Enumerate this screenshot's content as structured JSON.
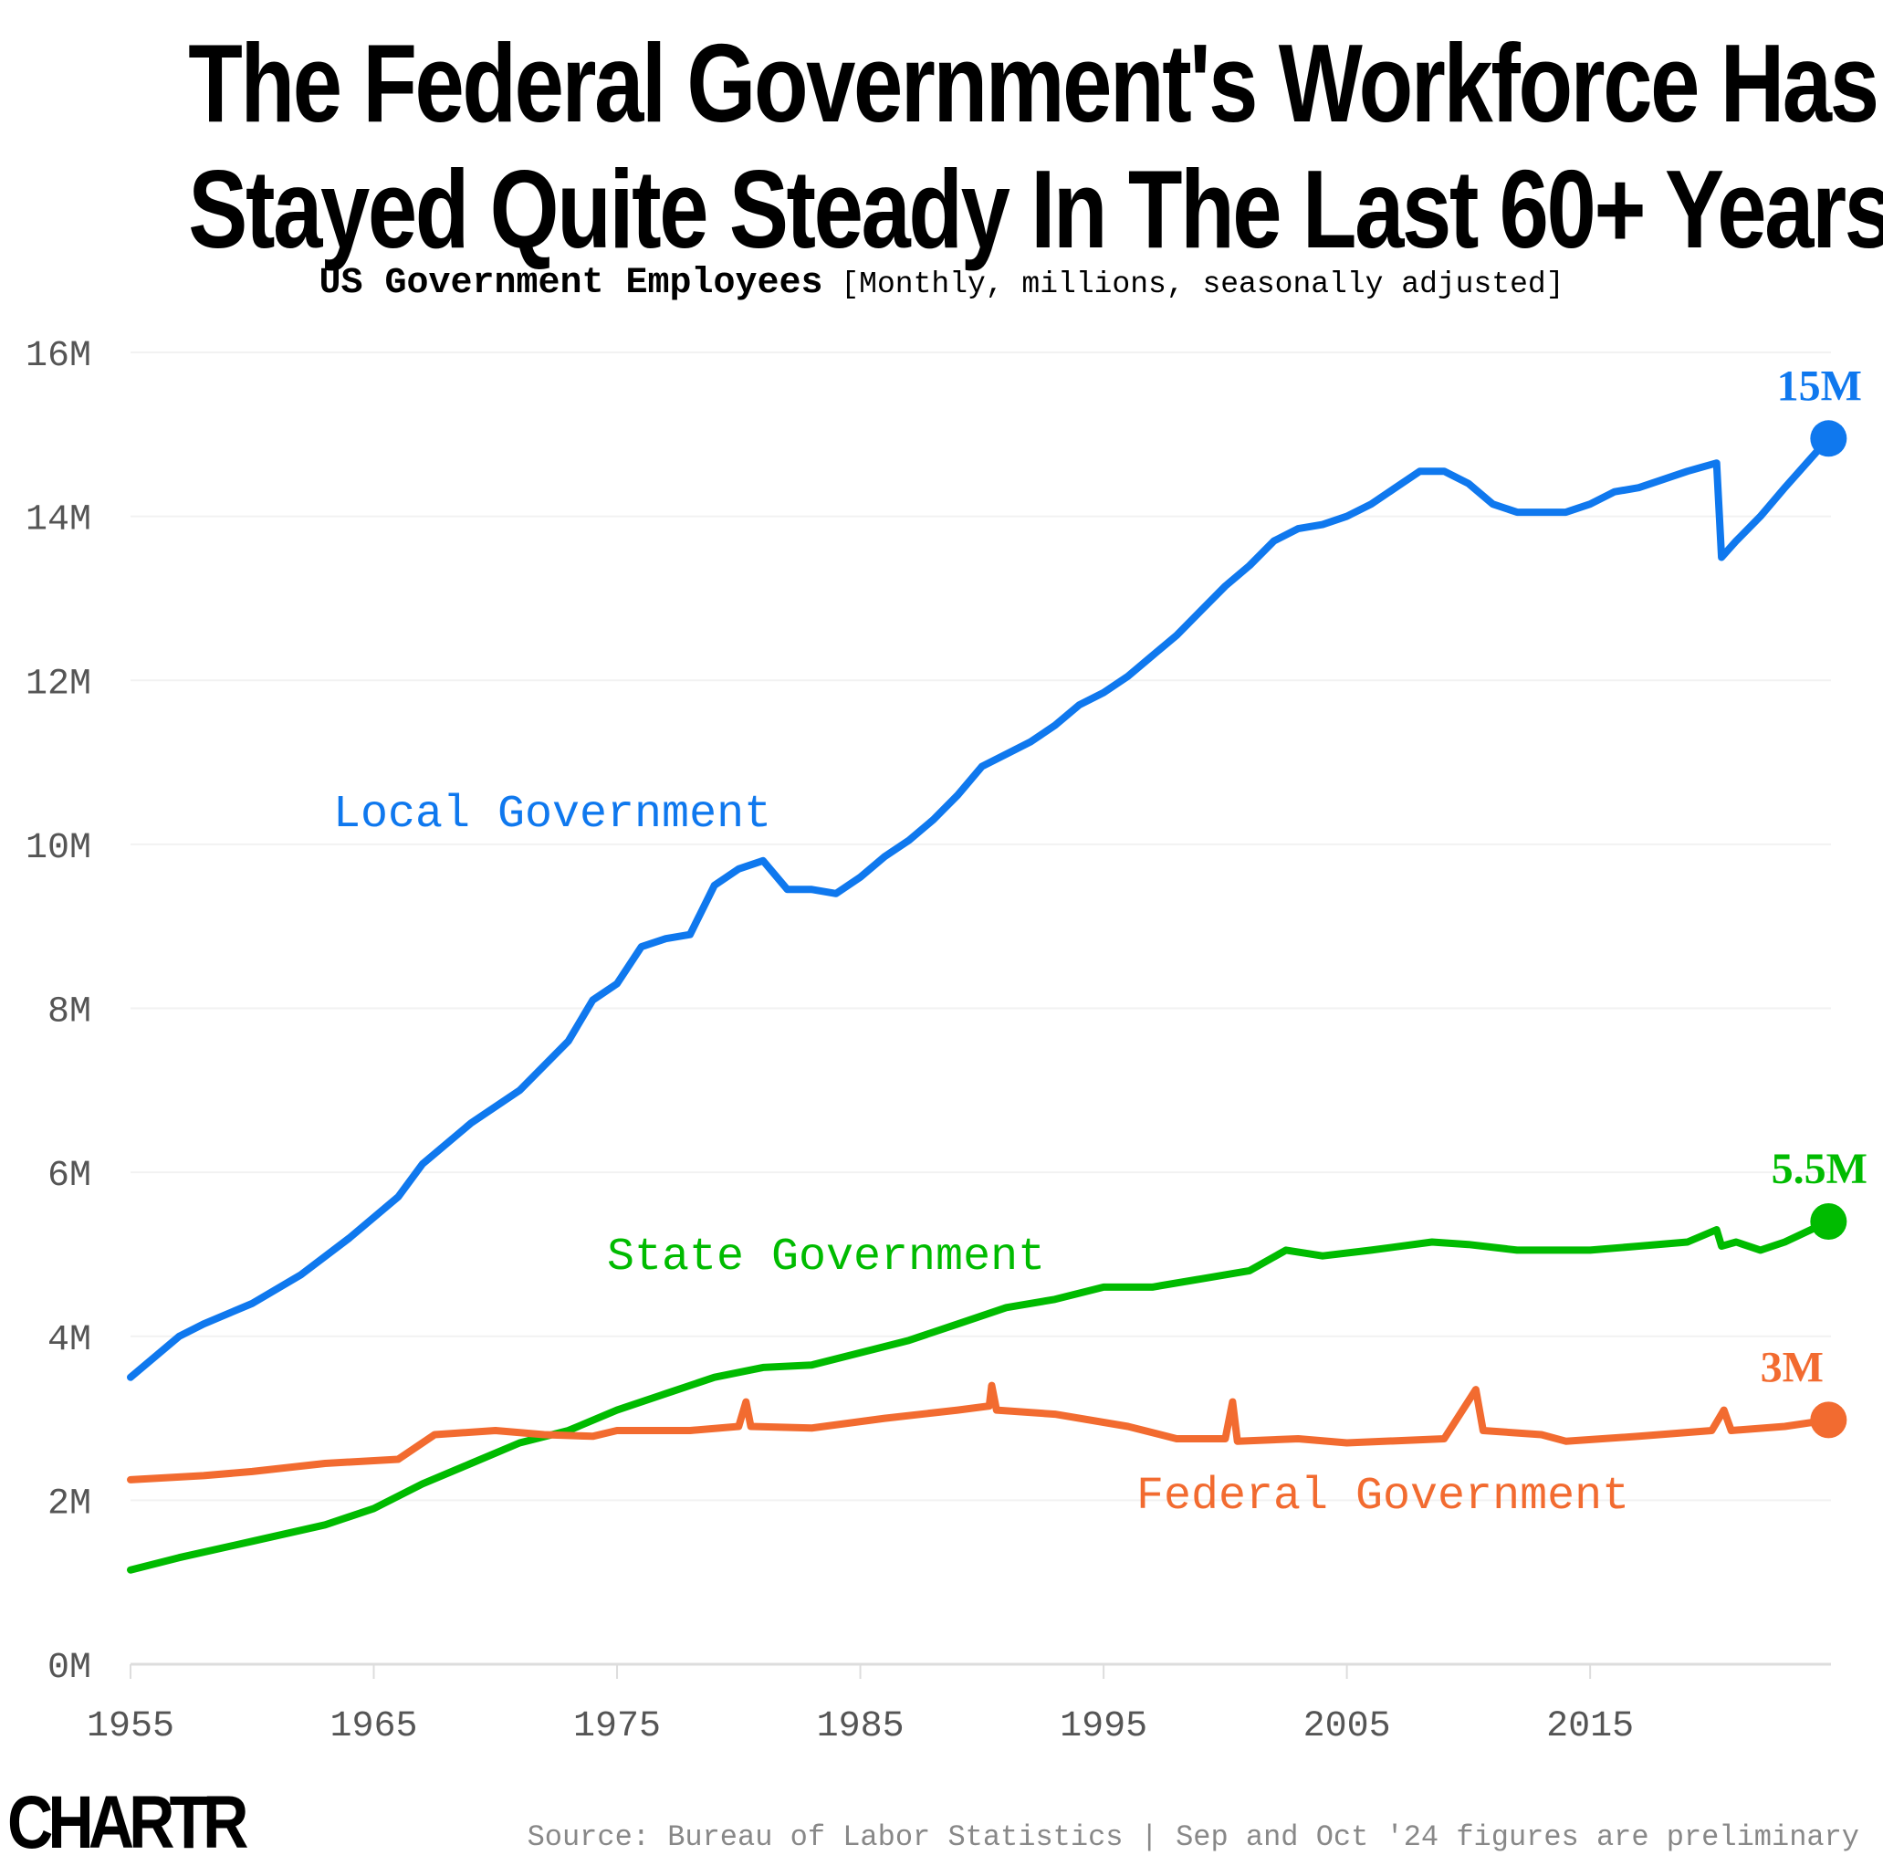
{
  "chart_data": {
    "type": "line",
    "title": "The Federal Government's Workforce Has Stayed Quite Steady In The Last 60+ Years",
    "title_lines": [
      "The Federal Government's Workforce Has",
      "Stayed Quite Steady In The Last 60+ Years"
    ],
    "subtitle_bold": "US Government Employees",
    "subtitle_rest": "[Monthly, millions, seasonally adjusted]",
    "xlabel": "",
    "ylabel": "",
    "xlim": [
      1955,
      2024.9
    ],
    "ylim": [
      0,
      16
    ],
    "x_ticks": [
      1955,
      1965,
      1975,
      1985,
      1995,
      2005,
      2015
    ],
    "x_tick_labels": [
      "1955",
      "1965",
      "1975",
      "1985",
      "1995",
      "2005",
      "2015"
    ],
    "y_ticks": [
      0,
      2,
      4,
      6,
      8,
      10,
      12,
      14,
      16
    ],
    "y_tick_labels": [
      "0M",
      "2M",
      "4M",
      "6M",
      "8M",
      "10M",
      "12M",
      "14M",
      "16M"
    ],
    "grid": "horizontal",
    "series": [
      {
        "name": "Local Government",
        "color": "#0f78ee",
        "end_label": "15M",
        "x": [
          1955,
          1957,
          1958,
          1960,
          1962,
          1964,
          1966,
          1967,
          1969,
          1971,
          1973,
          1974,
          1975,
          1976,
          1977,
          1978,
          1979,
          1980,
          1981,
          1982,
          1983,
          1984,
          1985,
          1986,
          1987,
          1988,
          1989,
          1990,
          1991,
          1992,
          1993,
          1994,
          1995,
          1996,
          1997,
          1998,
          1999,
          2000,
          2001,
          2002,
          2003,
          2004,
          2005,
          2006,
          2007,
          2008,
          2009,
          2010,
          2011,
          2012,
          2013,
          2014,
          2015,
          2016,
          2017,
          2018,
          2019,
          2020.2,
          2020.4,
          2021,
          2022,
          2023,
          2024.8
        ],
        "y": [
          3.5,
          4.0,
          4.15,
          4.4,
          4.75,
          5.2,
          5.7,
          6.1,
          6.6,
          7.0,
          7.6,
          8.1,
          8.3,
          8.75,
          8.85,
          8.9,
          9.5,
          9.7,
          9.8,
          9.45,
          9.45,
          9.4,
          9.6,
          9.85,
          10.05,
          10.3,
          10.6,
          10.95,
          11.1,
          11.25,
          11.45,
          11.7,
          11.85,
          12.05,
          12.3,
          12.55,
          12.85,
          13.15,
          13.4,
          13.7,
          13.85,
          13.9,
          14.0,
          14.15,
          14.35,
          14.55,
          14.55,
          14.4,
          14.15,
          14.05,
          14.05,
          14.05,
          14.15,
          14.3,
          14.35,
          14.45,
          14.55,
          14.65,
          13.5,
          13.7,
          14.0,
          14.35,
          14.95
        ]
      },
      {
        "name": "State Government",
        "color": "#00bb00",
        "end_label": "5.5M",
        "x": [
          1955,
          1957,
          1960,
          1963,
          1965,
          1967,
          1969,
          1971,
          1973,
          1975,
          1977,
          1979,
          1981,
          1983,
          1985,
          1987,
          1989,
          1991,
          1993,
          1995,
          1997,
          1999,
          2001,
          2002.5,
          2004,
          2006,
          2008.5,
          2010,
          2012,
          2015,
          2017,
          2019,
          2020.2,
          2020.4,
          2021,
          2022,
          2023,
          2024.8
        ],
        "y": [
          1.15,
          1.3,
          1.5,
          1.7,
          1.9,
          2.2,
          2.45,
          2.7,
          2.85,
          3.1,
          3.3,
          3.5,
          3.62,
          3.65,
          3.8,
          3.95,
          4.15,
          4.35,
          4.45,
          4.6,
          4.6,
          4.7,
          4.8,
          5.05,
          4.98,
          5.05,
          5.15,
          5.12,
          5.05,
          5.05,
          5.1,
          5.15,
          5.3,
          5.1,
          5.15,
          5.05,
          5.15,
          5.4
        ]
      },
      {
        "name": "Federal Government",
        "color": "#f26b30",
        "end_label": "3M",
        "x": [
          1955,
          1958,
          1960,
          1963,
          1966,
          1967.5,
          1970,
          1972,
          1974,
          1975,
          1978,
          1980,
          1980.3,
          1980.5,
          1983,
          1986,
          1989,
          1990.3,
          1990.4,
          1990.6,
          1993,
          1996,
          1998,
          2000,
          2000.3,
          2000.5,
          2003,
          2005,
          2009,
          2010.3,
          2010.6,
          2013,
          2014,
          2017,
          2020,
          2020.5,
          2020.8,
          2023,
          2024.8
        ],
        "y": [
          2.25,
          2.3,
          2.35,
          2.45,
          2.5,
          2.8,
          2.85,
          2.8,
          2.78,
          2.85,
          2.85,
          2.9,
          3.2,
          2.9,
          2.88,
          3.0,
          3.1,
          3.15,
          3.4,
          3.1,
          3.05,
          2.9,
          2.75,
          2.75,
          3.2,
          2.72,
          2.75,
          2.7,
          2.75,
          3.35,
          2.85,
          2.8,
          2.72,
          2.78,
          2.85,
          3.1,
          2.85,
          2.9,
          2.98
        ]
      }
    ],
    "legend": "inline labels"
  },
  "footer": {
    "logo": "CHARTR",
    "source": "Source: Bureau of Labor Statistics | Sep and Oct '24 figures are preliminary"
  }
}
